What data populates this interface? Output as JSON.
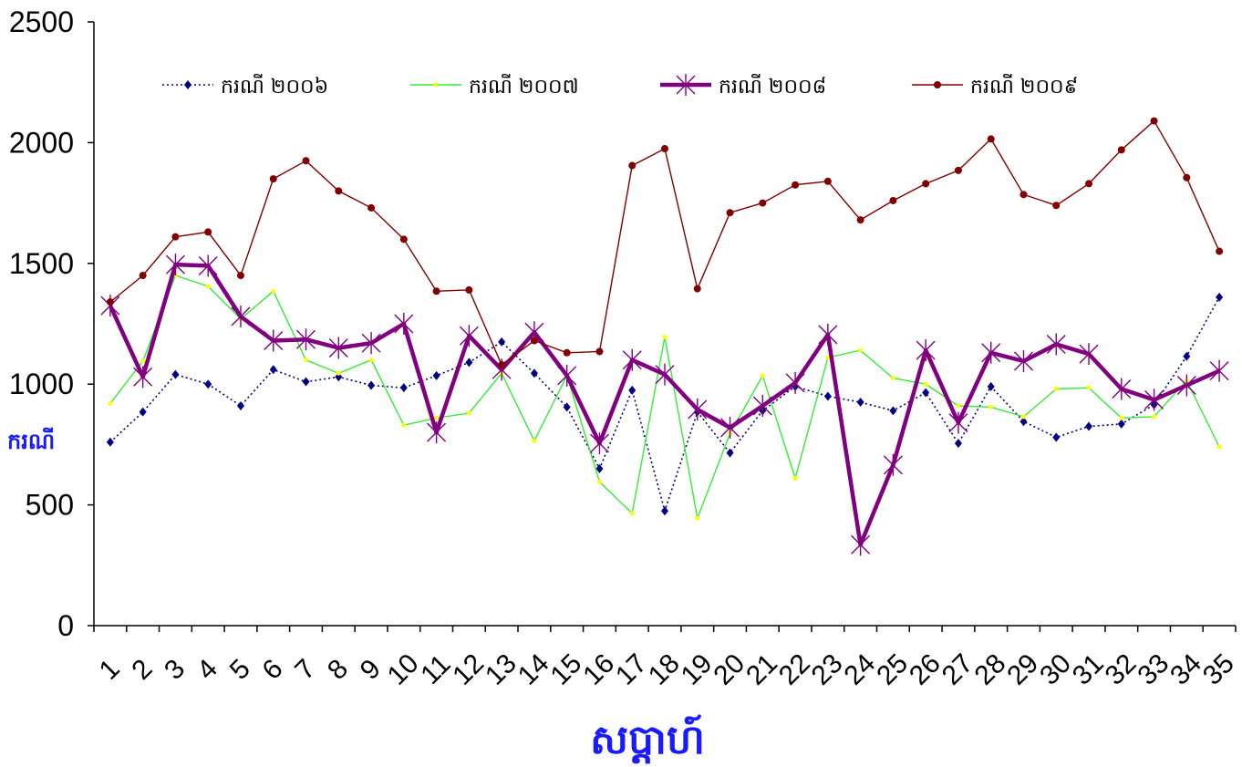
{
  "chart_data": {
    "type": "line",
    "title": "",
    "xlabel": "សប្តាហ៍",
    "ylabel": "ករណី",
    "ylim": [
      0,
      2500
    ],
    "yticks": [
      0,
      500,
      1000,
      1500,
      2000,
      2500
    ],
    "grid": false,
    "legend_position": "top",
    "categories": [
      "1",
      "2",
      "3",
      "4",
      "5",
      "6",
      "7",
      "8",
      "9",
      "10",
      "11",
      "12",
      "13",
      "14",
      "15",
      "16",
      "17",
      "18",
      "19",
      "20",
      "21",
      "22",
      "23",
      "24",
      "25",
      "26",
      "27",
      "28",
      "29",
      "30",
      "31",
      "32",
      "33",
      "34",
      "35"
    ],
    "series": [
      {
        "name": "ករណី ២០០៦",
        "color": "#000080",
        "style": "dotted",
        "marker": "diamond",
        "values": [
          760,
          885,
          1040,
          1000,
          910,
          1060,
          1010,
          1030,
          995,
          985,
          1035,
          1090,
          1175,
          1045,
          905,
          650,
          975,
          475,
          885,
          715,
          890,
          990,
          950,
          925,
          890,
          965,
          755,
          990,
          845,
          780,
          825,
          835,
          915,
          1115,
          1360
        ]
      },
      {
        "name": "ករណី ២០០៧",
        "color": "#33ee33",
        "style": "solid",
        "marker": "dot",
        "values": [
          920,
          1095,
          1450,
          1405,
          1270,
          1385,
          1100,
          1045,
          1100,
          830,
          860,
          880,
          1045,
          765,
          1035,
          595,
          465,
          1195,
          445,
          795,
          1035,
          610,
          1110,
          1140,
          1025,
          1000,
          910,
          905,
          865,
          980,
          985,
          860,
          865,
          1015,
          740
        ]
      },
      {
        "name": "ករណី ២០០៨",
        "color": "#800080",
        "style": "thick",
        "marker": "asterisk",
        "values": [
          1325,
          1030,
          1495,
          1490,
          1280,
          1180,
          1185,
          1150,
          1170,
          1250,
          800,
          1200,
          1060,
          1215,
          1035,
          755,
          1100,
          1040,
          895,
          820,
          910,
          1005,
          1205,
          335,
          665,
          1140,
          840,
          1130,
          1095,
          1165,
          1125,
          980,
          935,
          995,
          1055
        ]
      },
      {
        "name": "ករណី ២០០៩",
        "color": "#800000",
        "style": "solid",
        "marker": "circle",
        "values": [
          1340,
          1450,
          1610,
          1630,
          1450,
          1850,
          1925,
          1800,
          1730,
          1600,
          1385,
          1390,
          1080,
          1180,
          1130,
          1135,
          1905,
          1975,
          1395,
          1710,
          1750,
          1825,
          1840,
          1680,
          1760,
          1830,
          1885,
          2015,
          1785,
          1740,
          1830,
          1970,
          2090,
          1855,
          1550
        ]
      }
    ]
  }
}
